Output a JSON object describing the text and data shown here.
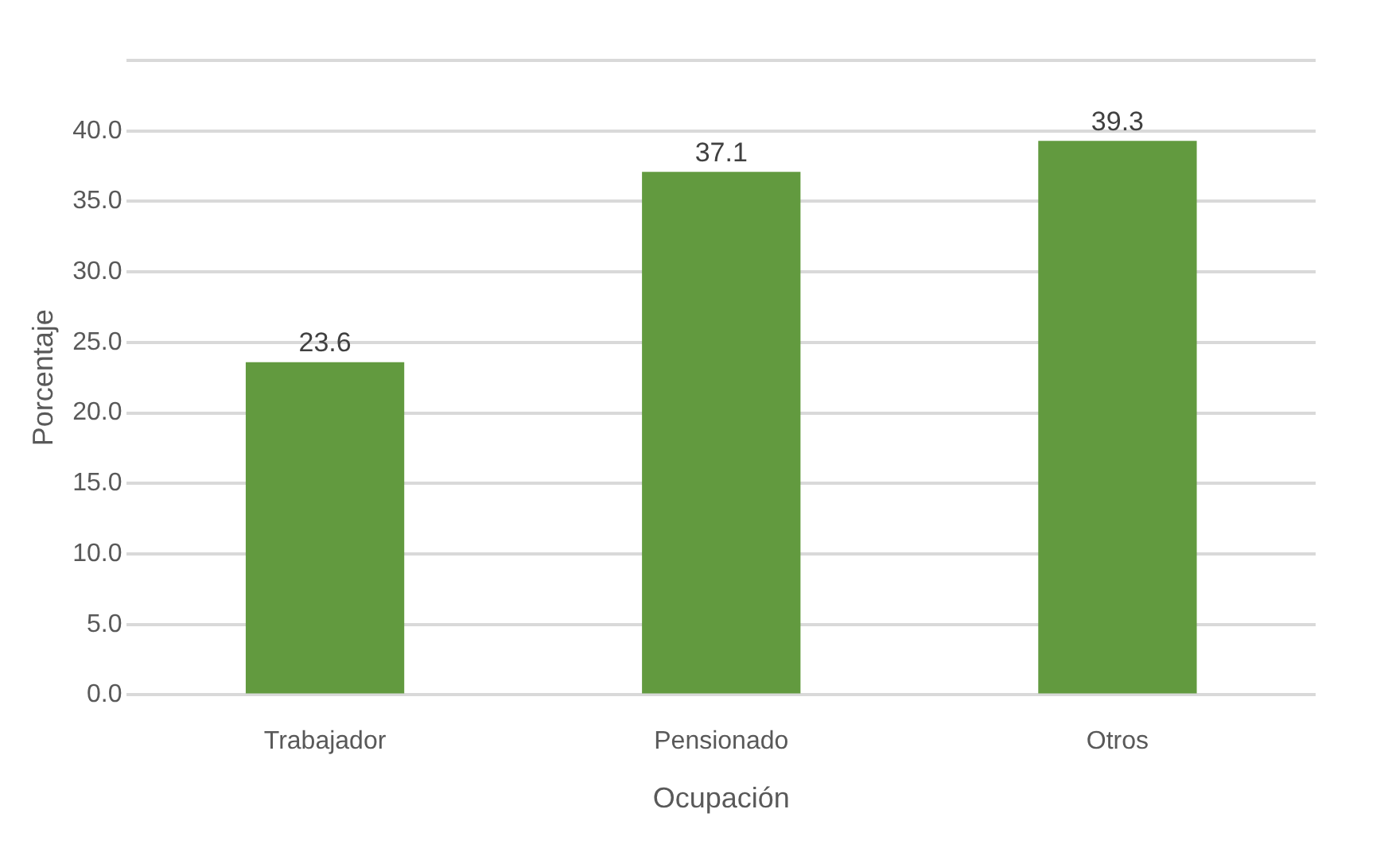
{
  "chart_data": {
    "type": "bar",
    "xlabel": "Ocupación",
    "ylabel": "Porcentaje",
    "categories": [
      "Trabajador",
      "Pensionado",
      "Otros"
    ],
    "values": [
      23.6,
      37.1,
      39.3
    ],
    "color": "#629a3f",
    "ylim": [
      0,
      45
    ],
    "yticks": [
      {
        "value": 0,
        "label": "0.0"
      },
      {
        "value": 5,
        "label": "5.0"
      },
      {
        "value": 10,
        "label": "10.0"
      },
      {
        "value": 15,
        "label": "15.0"
      },
      {
        "value": 20,
        "label": "20.0"
      },
      {
        "value": 25,
        "label": "25.0"
      },
      {
        "value": 30,
        "label": "30.0"
      },
      {
        "value": 35,
        "label": "35.0"
      },
      {
        "value": 40,
        "label": "40.0"
      },
      {
        "value": 45,
        "label": null
      }
    ],
    "grid": true,
    "data_labels": true,
    "legend": false
  }
}
